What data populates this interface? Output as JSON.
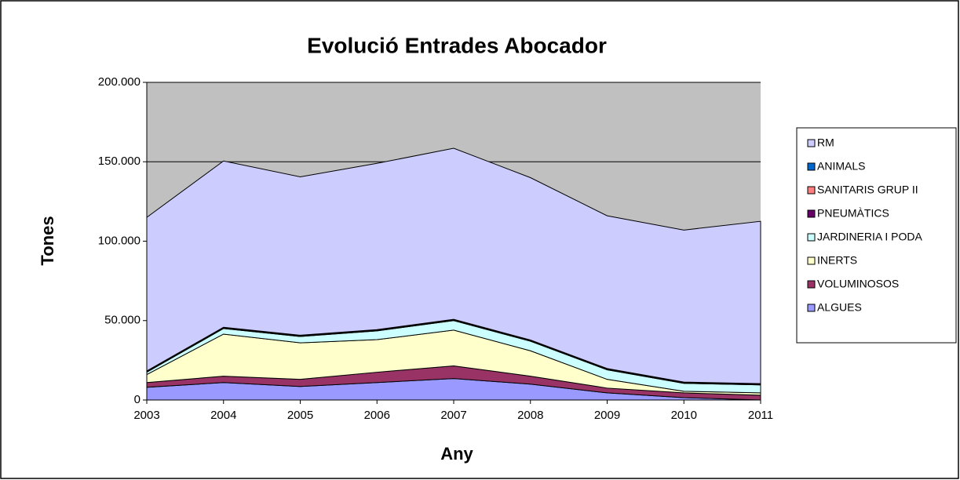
{
  "chart_data": {
    "type": "stacked_area",
    "title": "Evolució Entrades Abocador",
    "x_label": "Any",
    "y_label": "Tones",
    "categories": [
      "2003",
      "2004",
      "2005",
      "2006",
      "2007",
      "2008",
      "2009",
      "2010",
      "2011"
    ],
    "series": [
      {
        "name": "ALGUES",
        "color": "#9999ff",
        "values": [
          8000,
          11000,
          8500,
          11000,
          13500,
          10000,
          4500,
          1500,
          0
        ]
      },
      {
        "name": "VOLUMINOSOS",
        "color": "#993366",
        "values": [
          3000,
          4000,
          4500,
          6500,
          8000,
          5000,
          3000,
          3000,
          3000
        ]
      },
      {
        "name": "INERTS",
        "color": "#ffffcc",
        "values": [
          5000,
          26500,
          23000,
          20500,
          22500,
          16000,
          5500,
          1000,
          1500
        ]
      },
      {
        "name": "JARDINERIA I PODA",
        "color": "#ccffff",
        "values": [
          1500,
          3500,
          4000,
          5500,
          6000,
          6000,
          6000,
          5000,
          5000
        ]
      },
      {
        "name": "PNEUMÀTICS",
        "color": "#660066",
        "values": [
          400,
          400,
          400,
          400,
          400,
          400,
          400,
          400,
          400
        ]
      },
      {
        "name": "SANITARIS GRUP II",
        "color": "#ff8080",
        "values": [
          100,
          100,
          100,
          100,
          100,
          100,
          100,
          100,
          100
        ]
      },
      {
        "name": "ANIMALS",
        "color": "#0066cc",
        "values": [
          300,
          300,
          300,
          300,
          300,
          300,
          300,
          300,
          300
        ]
      },
      {
        "name": "RM",
        "color": "#ccccff",
        "values": [
          96700,
          104700,
          99700,
          104700,
          107700,
          102200,
          96200,
          95700,
          102200
        ]
      }
    ],
    "ylim": [
      0,
      200000
    ],
    "yticks": [
      0,
      {
        "value": 50000,
        "label": "50.000"
      },
      {
        "value": 100000,
        "label": "100.000"
      },
      {
        "value": 150000,
        "label": "150.000"
      },
      {
        "value": 200000,
        "label": "200.000"
      }
    ],
    "grid": true,
    "plot_background": "#c0c0c0",
    "legend": "right"
  }
}
